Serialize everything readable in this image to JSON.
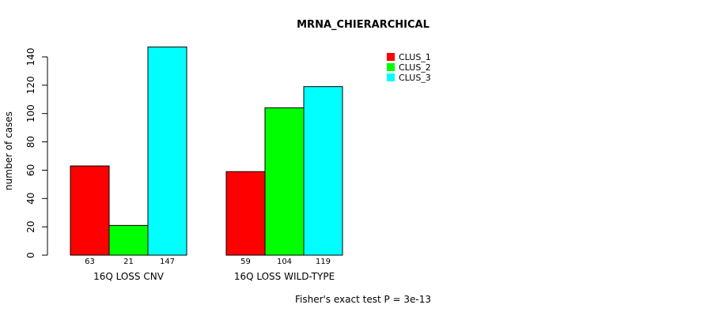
{
  "chart_data": {
    "type": "bar",
    "title": "MRNA_CHIERARCHICAL",
    "xlabel": "",
    "ylabel": "number of cases",
    "ylim": [
      0,
      140
    ],
    "yticks": [
      0,
      20,
      40,
      60,
      80,
      100,
      120,
      140
    ],
    "categories": [
      "16Q LOSS CNV",
      "16Q LOSS WILD-TYPE"
    ],
    "series": [
      {
        "name": "CLUS_1",
        "color": "#ff0000",
        "values": [
          63,
          59
        ]
      },
      {
        "name": "CLUS_2",
        "color": "#00ff00",
        "values": [
          21,
          104
        ]
      },
      {
        "name": "CLUS_3",
        "color": "#00ffff",
        "values": [
          147,
          119
        ]
      }
    ],
    "legend_position": "top-right",
    "grid": false,
    "footnote": "Fisher's exact test P = 3e-13"
  }
}
